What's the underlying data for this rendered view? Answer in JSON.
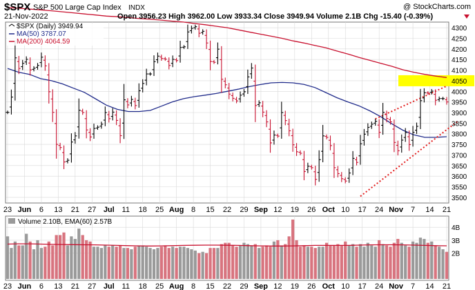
{
  "header": {
    "symbol": "$SPX",
    "name": "S&P 500 Large Cap Index",
    "exchange": "INDX",
    "date": "21-Nov-2022",
    "copyright": "@ StockCharts.com",
    "ohlc": "Open 3956.23  High 3962.00  Low 3933.34  Close 3949.94  Volume 2.1B  Chg -15.40 (-0.39%)"
  },
  "legend": {
    "price": "$SPX (Daily) 3949.94",
    "ma50": "MA(50) 3787.07",
    "ma200": "MA(200) 4064.59",
    "volume": "Volume 2.10B, EMA(60) 2.57B"
  },
  "colors": {
    "up": "#000000",
    "down": "#c8102e",
    "ma50": "#1f2a8a",
    "ma200": "#c8102e",
    "trendline": "#e31b1b",
    "highlight": "#ffff00",
    "vol_up": "#9a9a9a",
    "vol_down": "#d8747f",
    "grid": "#d8d8d8"
  },
  "chart_data": [
    {
      "type": "ohlc",
      "ylim": [
        3480,
        4320
      ],
      "yticks": [
        3500,
        3550,
        3600,
        3650,
        3700,
        3750,
        3800,
        3850,
        3900,
        3950,
        4000,
        4050,
        4100,
        4150,
        4200,
        4250,
        4300
      ],
      "highlight_level": "4050",
      "xticks": [
        "23",
        "Jun",
        "6",
        "13",
        "21",
        "27",
        "Jul",
        "11",
        "18",
        "25",
        "Aug",
        "8",
        "15",
        "22",
        "29",
        "Sep",
        "12",
        "19",
        "26",
        "Oct",
        "10",
        "17",
        "24",
        "Nov",
        "7",
        "14",
        "21"
      ],
      "closes": [
        3901,
        3973,
        4158,
        4108,
        4132,
        4151,
        4101,
        4109,
        4122,
        4161,
        4120,
        3998,
        3901,
        3750,
        3735,
        3667,
        3675,
        3761,
        3790,
        3911,
        3900,
        3818,
        3785,
        3825,
        3831,
        3845,
        3900,
        3871,
        3902,
        3863,
        3791,
        3960,
        3936,
        3962,
        3933,
        4003,
        4037,
        4082,
        4082,
        4140,
        4166,
        4155,
        4152,
        4122,
        4151,
        4145,
        4207,
        4210,
        4280,
        4297,
        4305,
        4274,
        4283,
        4228,
        4141,
        4137,
        4199,
        4057,
        4031,
        3987,
        3967,
        3955,
        3982,
        3998,
        4068,
        4110,
        3933,
        3946,
        3902,
        3856,
        3757,
        3794,
        3789,
        3900,
        3862,
        3814,
        3748,
        3715,
        3708,
        3622,
        3647,
        3640,
        3585,
        3678,
        3790,
        3783,
        3744,
        3640,
        3612,
        3588,
        3577,
        3615,
        3684,
        3665,
        3753,
        3798,
        3830,
        3845,
        3859,
        3807,
        3901,
        3872,
        3856,
        3759,
        3720,
        3770,
        3806,
        3749,
        3807,
        3835,
        3956,
        3993,
        3992,
        4001,
        3958,
        3966,
        3966,
        3950
      ],
      "ma50": [
        4108,
        4090,
        4080,
        4060,
        4050,
        4035,
        4015,
        3995,
        3965,
        3935,
        3915,
        3905,
        3905,
        3910,
        3930,
        3950,
        3965,
        3975,
        3982,
        3990,
        4000,
        4010,
        4022,
        4032,
        4040,
        4042,
        4040,
        4033,
        4018,
        3994,
        3970,
        3950,
        3932,
        3908,
        3880,
        3847,
        3817,
        3795,
        3783,
        3783,
        3786
      ],
      "ma200": [
        4395,
        4392,
        4388,
        4384,
        4380,
        4375,
        4370,
        4365,
        4360,
        4355,
        4352,
        4348,
        4343,
        4340,
        4336,
        4331,
        4327,
        4320,
        4314,
        4307,
        4300,
        4290,
        4280,
        4270,
        4260,
        4250,
        4238,
        4228,
        4216,
        4205,
        4190,
        4176,
        4160,
        4146,
        4132,
        4118,
        4102,
        4090,
        4080,
        4072,
        4065
      ],
      "upper_trend": [
        [
          98,
          3870
        ],
        [
          117,
          4025
        ]
      ],
      "lower_trend": [
        [
          94,
          3505
        ],
        [
          120,
          3860
        ]
      ]
    },
    {
      "type": "bar",
      "name": "Volume",
      "ylim": [
        0,
        4.6
      ],
      "yticks": [
        "2B",
        "3B",
        "4B"
      ],
      "values": [
        3.3,
        2.4,
        2.9,
        2.6,
        2.6,
        3.5,
        2.9,
        2.3,
        3.0,
        2.4,
        2.5,
        2.9,
        2.6,
        3.4,
        3.4,
        3.6,
        2.6,
        3.3,
        3.1,
        3.9,
        3.4,
        3.0,
        2.9,
        2.5,
        2.5,
        2.4,
        2.6,
        2.5,
        2.6,
        2.5,
        2.6,
        2.4,
        2.4,
        2.3,
        2.5,
        2.6,
        2.6,
        2.5,
        2.4,
        2.3,
        2.4,
        2.5,
        2.6,
        2.4,
        2.5,
        2.4,
        2.5,
        2.5,
        2.4,
        2.3,
        2.2,
        2.0,
        2.1,
        2.0,
        2.4,
        2.4,
        2.4,
        2.7,
        2.8,
        2.8,
        2.6,
        2.5,
        2.6,
        2.8,
        2.7,
        2.6,
        2.7,
        2.4,
        2.5,
        2.6,
        2.5,
        2.9,
        3.0,
        2.6,
        2.7,
        3.3,
        4.8,
        3.0,
        2.5,
        2.6,
        2.5,
        2.5,
        2.4,
        2.5,
        2.5,
        2.8,
        2.6,
        2.6,
        2.7,
        2.6,
        2.9,
        2.6,
        2.7,
        2.5,
        2.7,
        2.5,
        2.8,
        2.6,
        2.5,
        3.0,
        2.7,
        2.6,
        2.5,
        2.8,
        3.1,
        2.8,
        2.6,
        2.5,
        2.9,
        2.8,
        3.2,
        3.1,
        2.8,
        2.9,
        2.6,
        2.5,
        2.3,
        2.1
      ],
      "ema": [
        2.7,
        2.72,
        2.72,
        2.7,
        2.68,
        2.67,
        2.66,
        2.65,
        2.64,
        2.62,
        2.6,
        2.58,
        2.56,
        2.55,
        2.56,
        2.58,
        2.6,
        2.61,
        2.62,
        2.62,
        2.61,
        2.6,
        2.58,
        2.56,
        2.55,
        2.55,
        2.56,
        2.58,
        2.6,
        2.6,
        2.6,
        2.6,
        2.62,
        2.64,
        2.65,
        2.65,
        2.64,
        2.62,
        2.6,
        2.58,
        2.57
      ]
    }
  ]
}
